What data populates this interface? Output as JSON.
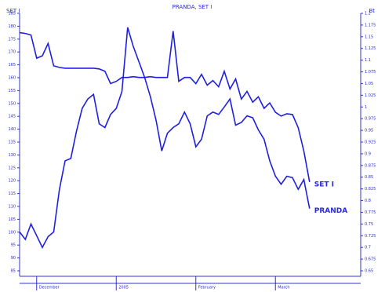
{
  "chart_data": {
    "type": "line",
    "title": "PRANDA, SET I",
    "y_label": "SET I",
    "y2_label": "Bt",
    "x": [
      0,
      1,
      2,
      3,
      4,
      5,
      6,
      7,
      8,
      9,
      10,
      11,
      12,
      13,
      14,
      15,
      16,
      17,
      18,
      19,
      20,
      21,
      22,
      23,
      24,
      25,
      26,
      27,
      28,
      29,
      30,
      31,
      32,
      33,
      34,
      35,
      36,
      37,
      38,
      39,
      40,
      41,
      42,
      43,
      44,
      45,
      46,
      47,
      48,
      49,
      50,
      51
    ],
    "xlim": [
      0,
      60
    ],
    "xticks": [
      {
        "value": 3,
        "label": "December"
      },
      {
        "value": 17,
        "label": "2005"
      },
      {
        "value": 31,
        "label": "February"
      },
      {
        "value": 45,
        "label": "March"
      }
    ],
    "ylim": [
      85,
      185
    ],
    "yticks": [
      85,
      90,
      95,
      100,
      105,
      110,
      115,
      120,
      125,
      130,
      135,
      140,
      145,
      150,
      155,
      160,
      165,
      170,
      175,
      180,
      185
    ],
    "y2lim": [
      0.65,
      1.2
    ],
    "y2ticks": [
      0.65,
      0.675,
      0.7,
      0.725,
      0.75,
      0.775,
      0.8,
      0.825,
      0.85,
      0.875,
      0.9,
      0.925,
      0.95,
      0.975,
      1,
      1.025,
      1.05,
      1.075,
      1.1,
      1.125,
      1.15,
      1.175,
      1.2
    ],
    "series": [
      {
        "name": "SET I",
        "color": "#1f1fe0",
        "values": [
          177.5,
          177.2,
          176.6,
          167.6,
          168.5,
          173.3,
          164.6,
          164,
          163.7,
          163.7,
          163.7,
          163.7,
          163.7,
          163.7,
          163.4,
          162.5,
          157.7,
          158.6,
          160.1,
          160.1,
          160.4,
          160.1,
          160.1,
          160.4,
          160.1,
          160.1,
          160.1,
          178.1,
          158.6,
          160.1,
          160.1,
          157.7,
          161.3,
          157.1,
          158.9,
          156.5,
          162.5,
          155.6,
          159.5,
          151.7,
          154.7,
          150.5,
          152.6,
          148.1,
          150.2,
          146.6,
          145.1,
          146,
          145.7,
          140.6,
          131.5,
          119.5
        ]
      },
      {
        "name": "PRANDA",
        "color": "#1f1fe0",
        "axis": "y2",
        "values": [
          0.733,
          0.717,
          0.75,
          0.725,
          0.7,
          0.723,
          0.733,
          0.824,
          0.885,
          0.89,
          0.948,
          0.997,
          1.017,
          1.027,
          0.964,
          0.956,
          0.984,
          0.997,
          1.033,
          1.17,
          1.129,
          1.096,
          1.063,
          1.022,
          0.972,
          0.906,
          0.944,
          0.956,
          0.964,
          0.989,
          0.964,
          0.915,
          0.931,
          0.981,
          0.989,
          0.984,
          1,
          1.017,
          0.961,
          0.967,
          0.981,
          0.977,
          0.951,
          0.931,
          0.885,
          0.852,
          0.835,
          0.852,
          0.849,
          0.824,
          0.845,
          0.783
        ]
      }
    ]
  }
}
